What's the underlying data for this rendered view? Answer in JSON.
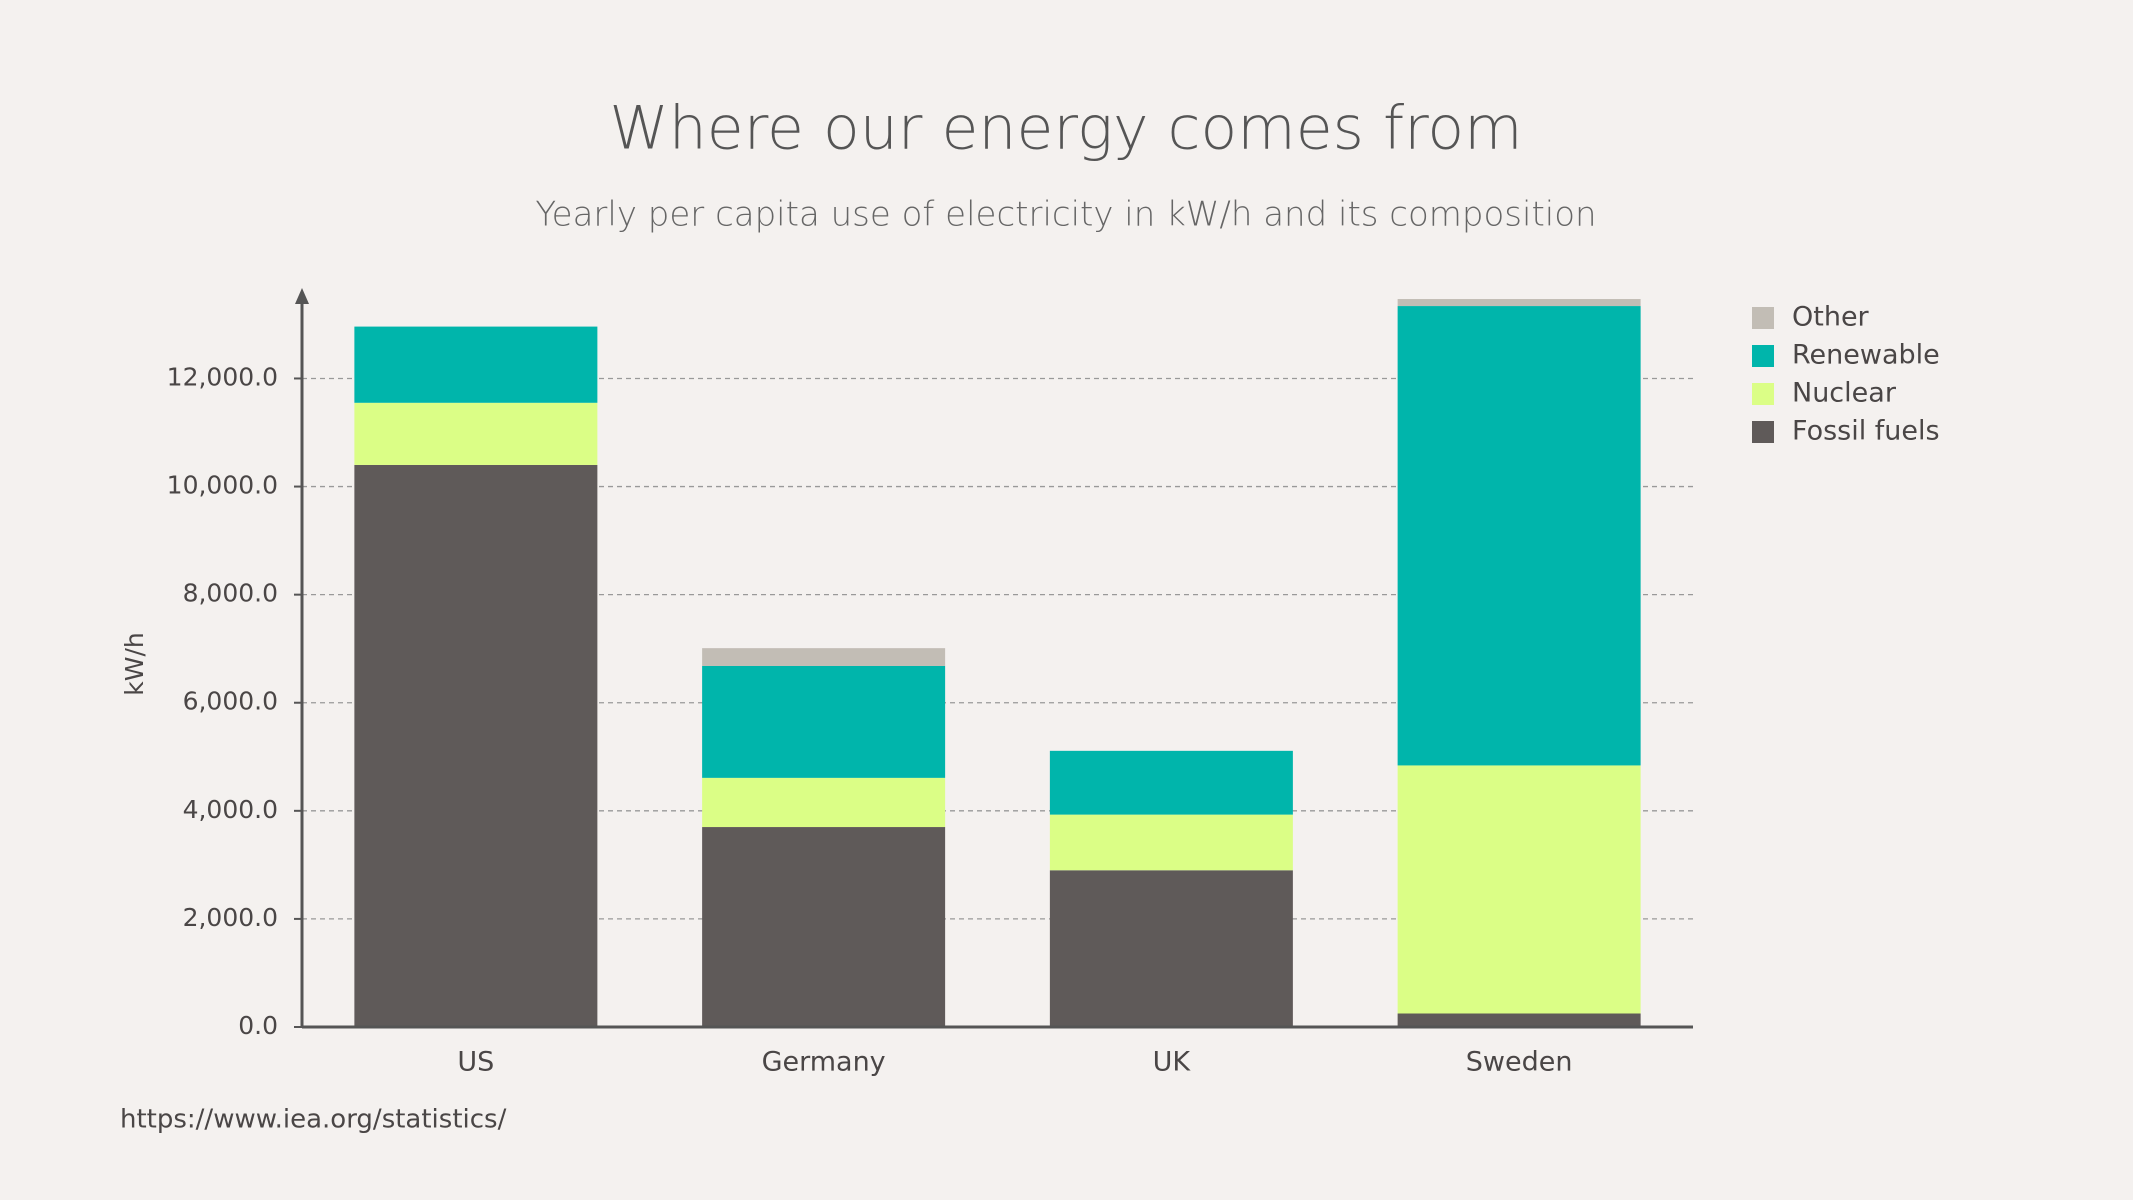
{
  "chart_data": {
    "type": "stacked_bar",
    "title": "Where our energy comes from",
    "subtitle": "Yearly per capita use of electricity in kW/h and its composition",
    "y_label": "kW/h",
    "source": "https://www.iea.org/statistics/",
    "categories": [
      "US",
      "Germany",
      "UK",
      "Sweden"
    ],
    "series": [
      {
        "name": "Fossil fuels",
        "color": "#5f5a59",
        "values": [
          10400,
          3700,
          2900,
          250
        ]
      },
      {
        "name": "Nuclear",
        "color": "#dbfe86",
        "values": [
          1150,
          910,
          1030,
          4590
        ]
      },
      {
        "name": "Renewable",
        "color": "#00b5ab",
        "values": [
          1410,
          2070,
          1180,
          8500
        ]
      },
      {
        "name": "Other",
        "color": "#c2bdb5",
        "values": [
          0,
          330,
          0,
          130
        ]
      }
    ],
    "ylim": [
      0,
      13600
    ],
    "yticks": [
      {
        "value": 0,
        "label": "0.0"
      },
      {
        "value": 2000,
        "label": "2,000.0"
      },
      {
        "value": 4000,
        "label": "4,000.0"
      },
      {
        "value": 6000,
        "label": "6,000.0"
      },
      {
        "value": 8000,
        "label": "8,000.0"
      },
      {
        "value": 10000,
        "label": "10,000.0"
      },
      {
        "value": 12000,
        "label": "12,000.0"
      }
    ],
    "grid": true,
    "legend": "right"
  }
}
